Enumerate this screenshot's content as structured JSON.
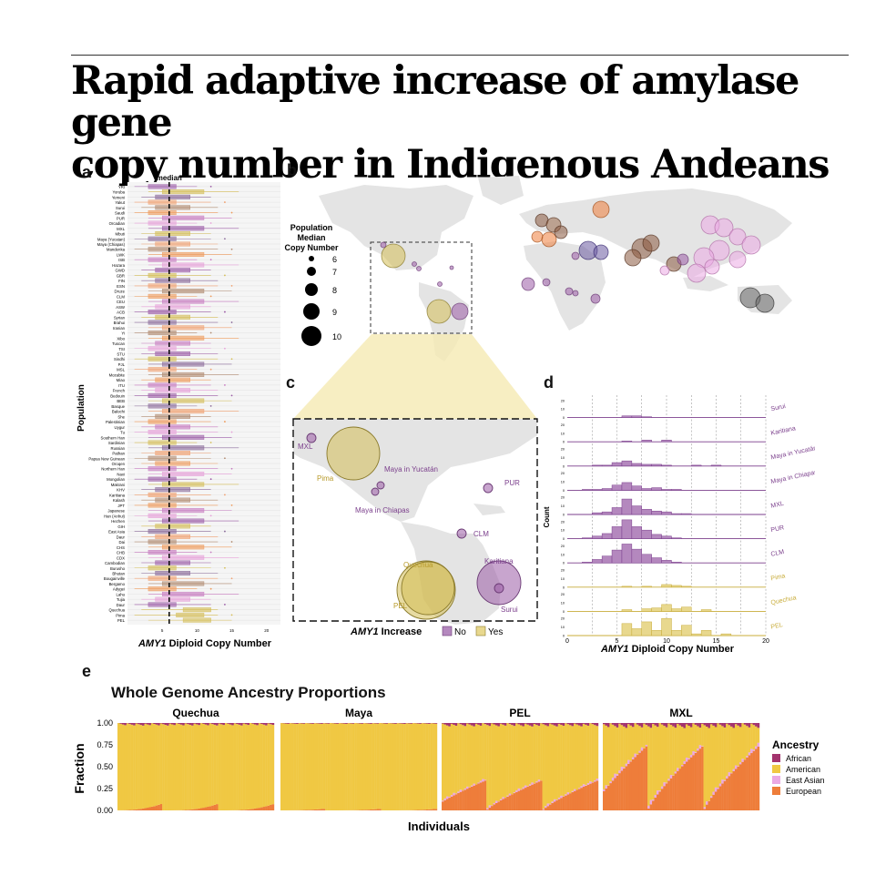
{
  "title_line1": "Rapid adaptive increase of amylase gene",
  "title_line2": "copy number in Indigenous Andeans",
  "panels": {
    "a": "a",
    "b": "b",
    "c": "c",
    "d": "d",
    "e": "e"
  },
  "panel_a": {
    "median_label": "median",
    "ylabel": "Population",
    "xlabel_gene": "AMY1",
    "xlabel_rest": " Diploid Copy Number",
    "xticks": [
      "5",
      "10",
      "15",
      "20"
    ],
    "median_value": 6,
    "xlim": [
      0,
      22
    ],
    "populations": [
      "YRI",
      "Yoruba",
      "Yemeni",
      "Yakut",
      "Surui",
      "Saudi",
      "PUR",
      "Orcadian",
      "MXL",
      "Mbuti",
      "Maya (Yucatan)",
      "Maya (Chiapas)",
      "Mandenka",
      "LWK",
      "ISB",
      "Hazara",
      "GWD",
      "GBR",
      "FIN",
      "ESN",
      "Druze",
      "CLM",
      "CEU",
      "ASW",
      "ACB",
      "Syrian",
      "Brahui",
      "Iranian",
      "Yi",
      "Xibo",
      "Tuscan",
      "TSI",
      "STU",
      "Sindhi",
      "PJL",
      "MSL",
      "Mozabite",
      "Miao",
      "ITU",
      "French",
      "Bedouin",
      "BEB",
      "Basque",
      "Balochi",
      "She",
      "Palestinian",
      "Uygur",
      "Tu",
      "Southern Han",
      "Sardinian",
      "Russian",
      "Pathan",
      "Papua New Guinean",
      "Oroqen",
      "Northern Han",
      "Naxi",
      "Mongolian",
      "Makrani",
      "KHV",
      "Karitiana",
      "Kalash",
      "JPT",
      "Japanese",
      "Han (Anhui)",
      "Hezhen",
      "GIH",
      "East Asia",
      "Daur",
      "Dai",
      "CHS",
      "CHB",
      "CDX",
      "Cambodian",
      "Burusho",
      "Bhutan",
      "Bougainville",
      "Bergamo",
      "Adygei",
      "Lahu",
      "Tujia",
      "Daur",
      "Quechua",
      "Pima",
      "PEL"
    ]
  },
  "panel_b": {
    "legend_title": [
      "Population",
      "Median",
      "Copy Number"
    ],
    "legend_values": [
      "6",
      "7",
      "8",
      "9",
      "10"
    ]
  },
  "panel_c": {
    "labels": {
      "mxl": "MXL",
      "pima": "Pima",
      "yucatan": "Maya in Yucatán",
      "chiapas": "Maya in Chiapas",
      "pur": "PUR",
      "clm": "CLM",
      "quechua": "Quechua",
      "karitiana": "Karitiana",
      "pel": "PEL",
      "surui": "Surui"
    },
    "legend_gene": "AMY1",
    "legend_rest": " Increase",
    "legend_no": "No",
    "legend_yes": "Yes"
  },
  "panel_d": {
    "ylabel": "Count",
    "xlabel_gene": "AMY1",
    "xlabel_rest": " Diploid Copy Number",
    "xticks": [
      "0",
      "5",
      "10",
      "15",
      "20"
    ],
    "yticks": [
      "0",
      "10",
      "20"
    ],
    "rows": [
      {
        "name": "Surui",
        "increase": false,
        "counts": [
          0,
          0,
          0,
          0,
          0,
          0,
          2,
          2,
          1,
          0,
          0,
          0,
          0,
          0,
          0,
          0,
          0,
          0,
          0,
          0,
          0
        ]
      },
      {
        "name": "Karitiana",
        "increase": false,
        "counts": [
          0,
          0,
          0,
          0,
          0,
          0,
          1,
          0,
          2,
          0,
          2,
          0,
          0,
          0,
          0,
          0,
          0,
          0,
          0,
          0,
          0
        ]
      },
      {
        "name": "Maya in Yucatán",
        "increase": false,
        "counts": [
          0,
          0,
          0,
          1,
          1,
          4,
          6,
          3,
          2,
          2,
          1,
          0,
          0,
          1,
          0,
          1,
          0,
          0,
          0,
          0,
          0
        ]
      },
      {
        "name": "Maya in Chiapas",
        "increase": false,
        "counts": [
          0,
          0,
          1,
          1,
          2,
          6,
          9,
          5,
          2,
          3,
          1,
          1,
          0,
          0,
          0,
          0,
          0,
          0,
          0,
          0,
          0
        ]
      },
      {
        "name": "MXL",
        "increase": false,
        "counts": [
          0,
          0,
          0,
          2,
          3,
          8,
          18,
          10,
          6,
          4,
          3,
          1,
          1,
          0,
          0,
          0,
          0,
          0,
          0,
          0,
          0
        ]
      },
      {
        "name": "PUR",
        "increase": false,
        "counts": [
          0,
          0,
          1,
          3,
          6,
          14,
          22,
          14,
          10,
          5,
          3,
          1,
          0,
          0,
          0,
          0,
          0,
          0,
          0,
          0,
          0
        ]
      },
      {
        "name": "CLM",
        "increase": false,
        "counts": [
          0,
          0,
          1,
          4,
          8,
          15,
          22,
          16,
          10,
          6,
          3,
          1,
          0,
          0,
          0,
          0,
          0,
          0,
          0,
          0,
          0
        ]
      },
      {
        "name": "Pima",
        "increase": true,
        "counts": [
          0,
          0,
          0,
          0,
          0,
          0,
          1,
          0,
          1,
          0,
          3,
          2,
          1,
          0,
          0,
          0,
          0,
          0,
          0,
          0,
          0
        ]
      },
      {
        "name": "Quechua",
        "increase": true,
        "counts": [
          0,
          0,
          0,
          0,
          0,
          0,
          2,
          0,
          3,
          4,
          8,
          3,
          5,
          0,
          2,
          0,
          0,
          0,
          0,
          0,
          0
        ]
      },
      {
        "name": "PEL",
        "increase": true,
        "counts": [
          0,
          0,
          0,
          0,
          0,
          0,
          14,
          8,
          16,
          6,
          20,
          6,
          12,
          2,
          6,
          0,
          2,
          0,
          0,
          0,
          0
        ]
      }
    ]
  },
  "panel_e": {
    "title": "Whole Genome Ancestry Proportions",
    "groups": [
      "Quechua",
      "Maya",
      "PEL",
      "MXL"
    ],
    "ylabel": "Fraction",
    "yticks": [
      "0.00",
      "0.25",
      "0.50",
      "0.75",
      "1.00"
    ],
    "xlabel": "Individuals",
    "legend_title": "Ancestry",
    "legend_items": [
      {
        "name": "African",
        "color": "#a3336e"
      },
      {
        "name": "American",
        "color": "#f0c843"
      },
      {
        "name": "East Asian",
        "color": "#eba9e3"
      },
      {
        "name": "European",
        "color": "#ee7d3a"
      }
    ]
  },
  "colors": {
    "no_increase": "#9b5ba6",
    "yes_increase": "#d4bd55",
    "american": "#f0c843",
    "european": "#ee7d3a",
    "african": "#a3336e",
    "east_asian": "#eba9e3"
  }
}
